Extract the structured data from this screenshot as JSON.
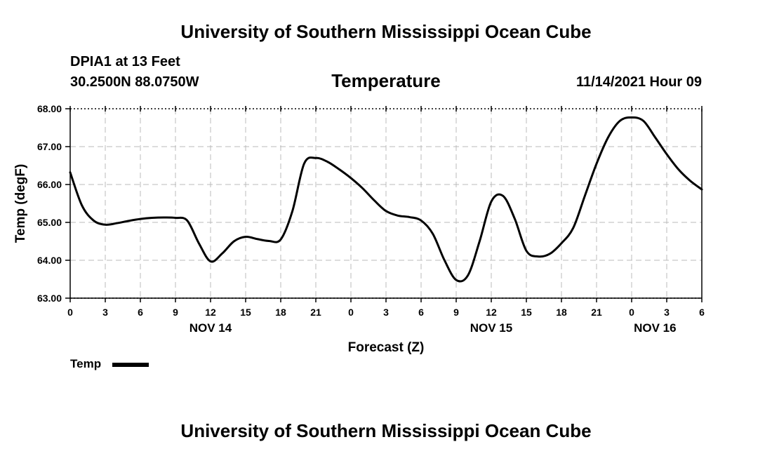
{
  "header": {
    "title_top": "University of Southern Mississippi Ocean Cube",
    "title_bottom": "University of Southern Mississippi Ocean Cube",
    "station": "DPIA1 at 13 Feet",
    "coords": "30.2500N  88.0750W",
    "chart_title": "Temperature",
    "datetime": "11/14/2021 Hour 09"
  },
  "legend": {
    "label": "Temp"
  },
  "chart_data": {
    "type": "line",
    "title": "Temperature",
    "xlabel": "Forecast (Z)",
    "ylabel": "Temp (degF)",
    "xlim": [
      0,
      54
    ],
    "ylim": [
      63.0,
      68.0
    ],
    "y_ticks": [
      "63.00",
      "64.00",
      "65.00",
      "66.00",
      "67.00",
      "68.00"
    ],
    "x_tick_labels": [
      "0",
      "3",
      "6",
      "9",
      "12",
      "15",
      "18",
      "21",
      "0",
      "3",
      "6",
      "9",
      "12",
      "15",
      "18",
      "21",
      "0",
      "3",
      "6"
    ],
    "date_labels": [
      {
        "label": "NOV 14",
        "hour": 12
      },
      {
        "label": "NOV 15",
        "hour": 36
      },
      {
        "label": "NOV 16",
        "hour": 50
      }
    ],
    "grid": true,
    "series": [
      {
        "name": "Temp",
        "x": [
          0,
          1,
          2,
          3,
          4,
          5,
          6,
          7,
          8,
          9,
          10,
          11,
          12,
          13,
          14,
          15,
          16,
          17,
          18,
          19,
          20,
          21,
          22,
          23,
          24,
          25,
          26,
          27,
          28,
          29,
          30,
          31,
          32,
          33,
          34,
          35,
          36,
          37,
          38,
          39,
          40,
          41,
          42,
          43,
          44,
          45,
          46,
          47,
          48,
          49,
          50,
          51,
          52,
          53,
          54
        ],
        "values": [
          66.32,
          65.45,
          65.05,
          64.94,
          64.98,
          65.04,
          65.09,
          65.12,
          65.13,
          65.12,
          65.05,
          64.45,
          63.97,
          64.18,
          64.5,
          64.62,
          64.56,
          64.51,
          64.55,
          65.3,
          66.55,
          66.7,
          66.6,
          66.4,
          66.17,
          65.9,
          65.58,
          65.3,
          65.18,
          65.14,
          65.05,
          64.7,
          64.0,
          63.48,
          63.6,
          64.5,
          65.55,
          65.7,
          65.1,
          64.25,
          64.1,
          64.17,
          64.45,
          64.85,
          65.7,
          66.55,
          67.25,
          67.68,
          67.77,
          67.68,
          67.25,
          66.8,
          66.4,
          66.1,
          65.87
        ]
      }
    ]
  }
}
